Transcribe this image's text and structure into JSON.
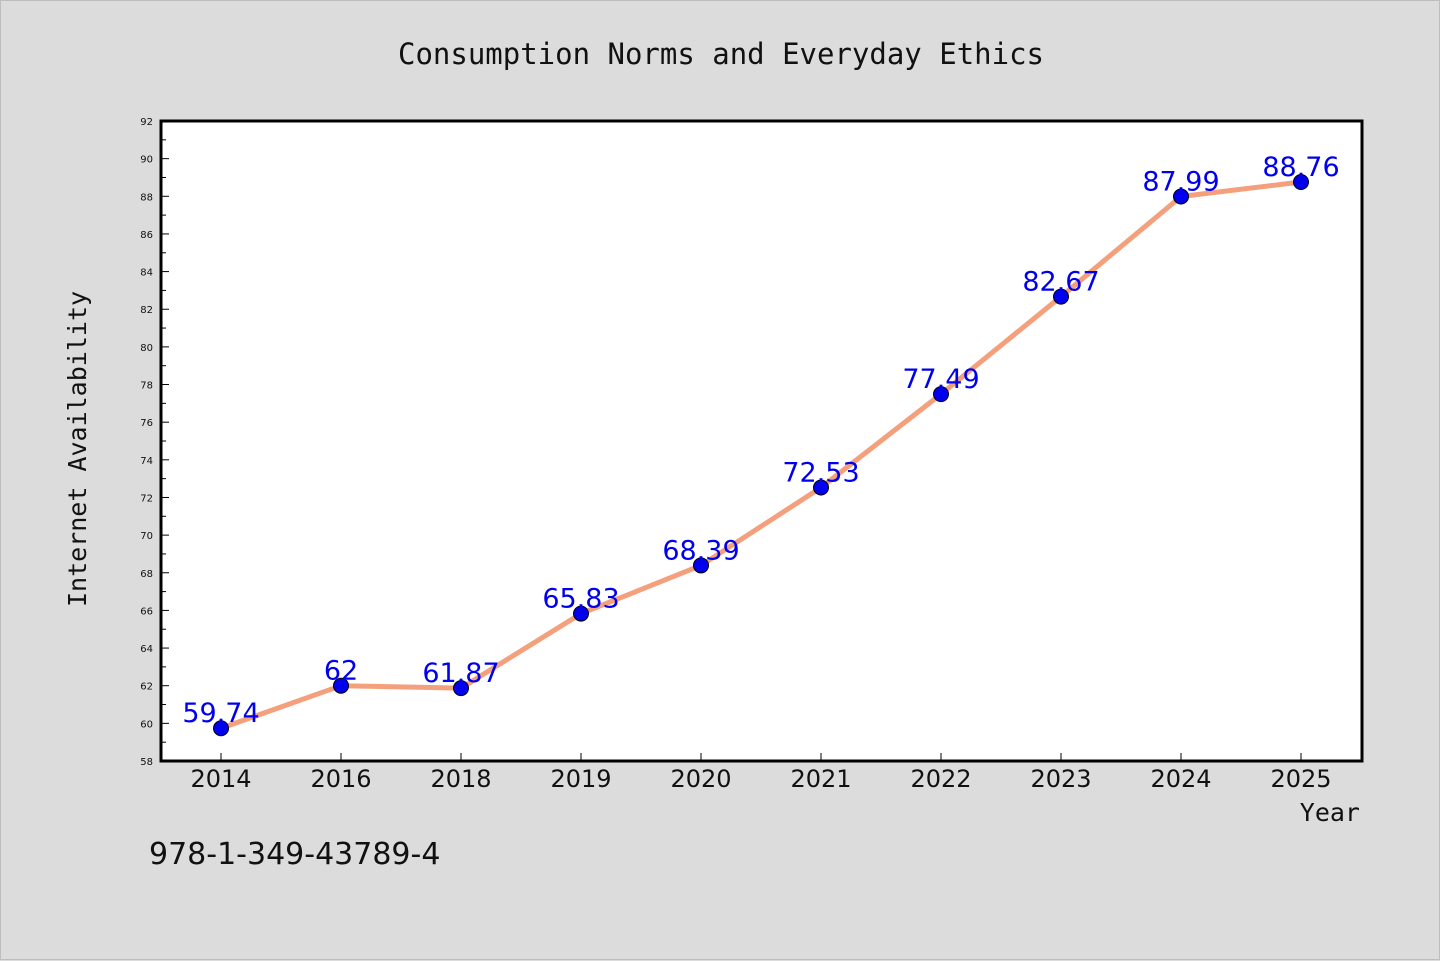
{
  "chart_data": {
    "type": "line",
    "title": "Consumption Norms and Everyday Ethics",
    "xlabel": "Year",
    "ylabel": "Internet Availability",
    "categories": [
      "2014",
      "2016",
      "2018",
      "2019",
      "2020",
      "2021",
      "2022",
      "2023",
      "2024",
      "2025"
    ],
    "series": [
      {
        "values": [
          59.74,
          62,
          61.87,
          65.83,
          68.39,
          72.53,
          77.49,
          82.67,
          87.99,
          88.76
        ],
        "labels": [
          "59.74",
          "62",
          "61.87",
          "65.83",
          "68.39",
          "72.53",
          "77.49",
          "82.67",
          "87.99",
          "88.76"
        ],
        "line_color": "#f4a07c",
        "marker_color": "#0000ee"
      }
    ],
    "ylim": [
      58,
      92
    ],
    "yticks": [
      58,
      60,
      62,
      64,
      66,
      68,
      70,
      72,
      74,
      76,
      78,
      80,
      82,
      84,
      86,
      88,
      90,
      92
    ],
    "grid": false,
    "legend": "none"
  },
  "footnote": "978-1-349-43789-4"
}
